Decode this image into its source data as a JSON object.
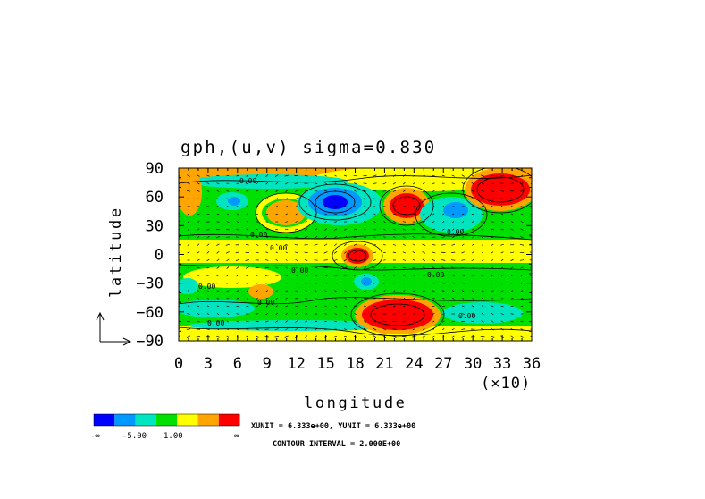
{
  "chart_data": {
    "type": "heatmap",
    "title": "gph,(u,v) sigma=0.830",
    "xlabel": "longitude",
    "ylabel": "latitude",
    "x_multiplier_label": "(×10)",
    "xlim": [
      0,
      36
    ],
    "ylim": [
      -90,
      90
    ],
    "x_ticks": [
      "0",
      "3",
      "6",
      "9",
      "12",
      "15",
      "18",
      "21",
      "24",
      "27",
      "30",
      "33",
      "36"
    ],
    "y_ticks": [
      "-90",
      "-60",
      "-30",
      "0",
      "30",
      "60",
      "90"
    ],
    "contour_labels": [
      "0.00",
      "0.00",
      "0.00",
      "0.00",
      "0.00",
      "0.00",
      "0.00",
      "0.00",
      "0.00",
      "0.00"
    ],
    "color_bar": {
      "colors": [
        "#0000ff",
        "#0099ff",
        "#00e5c0",
        "#00e000",
        "#ffff00",
        "#ffa500",
        "#ff0000"
      ],
      "labels": [
        "-∞",
        "-5.00",
        "1.00",
        "∞"
      ]
    },
    "units_text": "XUNIT = 6.333e+00, YUNIT = 6.333e+00",
    "contour_interval_text": "CONTOUR INTERVAL = 2.000E+00",
    "features": [
      {
        "lon": 16.5,
        "lat": 58,
        "level": "blue"
      },
      {
        "lon": 23,
        "lat": 55,
        "level": "red"
      },
      {
        "lon": 33.5,
        "lat": 70,
        "level": "red"
      },
      {
        "lon": 19.5,
        "lat": 0,
        "level": "red"
      },
      {
        "lon": 24,
        "lat": -63,
        "level": "red"
      },
      {
        "lon": 9,
        "lat": 48,
        "level": "orange"
      },
      {
        "lon": 27.5,
        "lat": 48,
        "level": "cyan"
      },
      {
        "lon": 2,
        "lat": 75,
        "level": "orange"
      }
    ],
    "grid": false
  }
}
